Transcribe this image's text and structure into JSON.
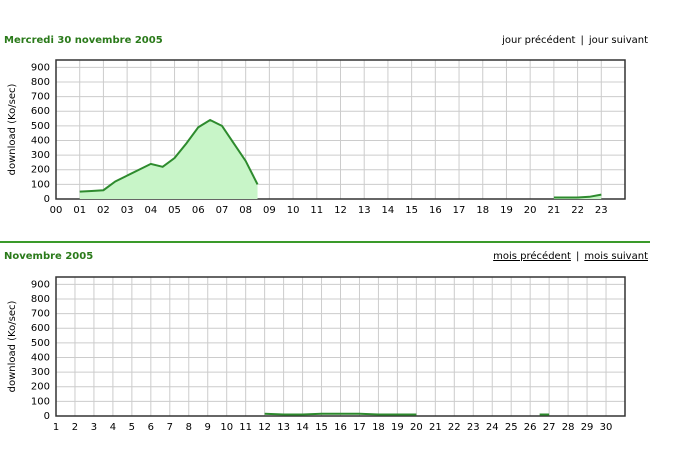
{
  "chart_data": [
    {
      "type": "area",
      "title": "Mercredi 30 novembre 2005",
      "y_label": "download (Ko/sec)",
      "x": [
        1,
        1.5,
        2,
        2.5,
        3,
        3.5,
        4,
        4.5,
        5,
        5.5,
        6,
        6.5,
        7,
        7.5,
        8,
        8.5,
        15,
        21,
        22,
        22.5,
        23
      ],
      "series": [
        {
          "name": "download",
          "color": "#2e8b2e",
          "values": [
            50,
            55,
            60,
            120,
            160,
            200,
            240,
            220,
            280,
            380,
            490,
            540,
            500,
            380,
            260,
            100,
            null,
            10,
            10,
            15,
            30
          ]
        }
      ],
      "fill": "#c8f5c8",
      "xlim": [
        0,
        24
      ],
      "ylim": [
        0,
        950
      ],
      "xticks": [
        {
          "value": 0,
          "label": "00"
        },
        {
          "value": 1,
          "label": "01"
        },
        {
          "value": 2,
          "label": "02"
        },
        {
          "value": 3,
          "label": "03"
        },
        {
          "value": 4,
          "label": "04"
        },
        {
          "value": 5,
          "label": "05"
        },
        {
          "value": 6,
          "label": "06"
        },
        {
          "value": 7,
          "label": "07"
        },
        {
          "value": 8,
          "label": "08"
        },
        {
          "value": 9,
          "label": "09"
        },
        10,
        11,
        12,
        13,
        14,
        15,
        16,
        17,
        18,
        19,
        20,
        21,
        22,
        23
      ],
      "yticks": [
        0,
        100,
        200,
        300,
        400,
        500,
        600,
        700,
        800,
        900
      ],
      "grid": true,
      "nav": {
        "previous": "jour précédent",
        "separator": "|",
        "next": "jour suivant"
      }
    },
    {
      "type": "line",
      "title": "Novembre 2005",
      "y_label": "download (Ko/sec)",
      "x": [
        12,
        13,
        14,
        15,
        16,
        17,
        18,
        19,
        20,
        21,
        26.5,
        27
      ],
      "series": [
        {
          "name": "download",
          "color": "#2e8b2e",
          "values": [
            15,
            10,
            10,
            15,
            15,
            15,
            10,
            10,
            10,
            null,
            10,
            10
          ]
        }
      ],
      "xlim": [
        1,
        31
      ],
      "ylim": [
        0,
        950
      ],
      "xticks": [
        1,
        2,
        3,
        4,
        5,
        6,
        7,
        8,
        9,
        10,
        11,
        12,
        13,
        14,
        15,
        16,
        17,
        18,
        19,
        20,
        21,
        22,
        23,
        24,
        25,
        26,
        27,
        28,
        29,
        30
      ],
      "muted_xticks": [
        5,
        6,
        12,
        13,
        19,
        20,
        26,
        27
      ],
      "yticks": [
        0,
        100,
        200,
        300,
        400,
        500,
        600,
        700,
        800,
        900
      ],
      "grid": true,
      "nav": {
        "previous": "mois précédent",
        "separator": "|",
        "next": "mois suivant"
      },
      "nav_underline": true
    }
  ]
}
